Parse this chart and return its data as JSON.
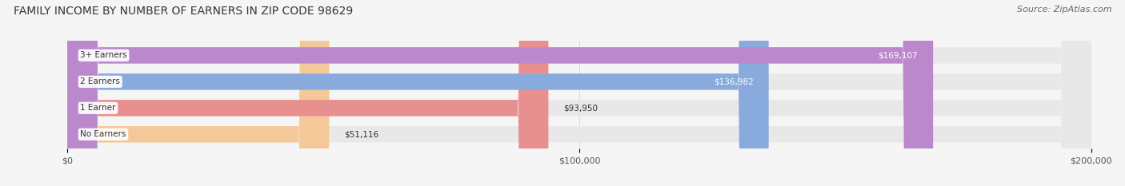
{
  "title": "FAMILY INCOME BY NUMBER OF EARNERS IN ZIP CODE 98629",
  "source": "Source: ZipAtlas.com",
  "categories": [
    "No Earners",
    "1 Earner",
    "2 Earners",
    "3+ Earners"
  ],
  "values": [
    51116,
    93950,
    136982,
    169107
  ],
  "bar_colors": [
    "#f5c899",
    "#e89090",
    "#88aadd",
    "#bb88cc"
  ],
  "bar_bg_color": "#e8e8e8",
  "xlim": [
    0,
    200000
  ],
  "xtick_values": [
    0,
    100000,
    200000
  ],
  "xtick_labels": [
    "$0",
    "$100,000",
    "$200,000"
  ],
  "value_labels": [
    "$51,116",
    "$93,950",
    "$136,982",
    "$169,107"
  ],
  "value_label_colors": [
    "#333333",
    "#333333",
    "#ffffff",
    "#ffffff"
  ],
  "title_fontsize": 10,
  "source_fontsize": 8,
  "bar_label_fontsize": 7.5,
  "value_fontsize": 7.5,
  "background_color": "#f5f5f5"
}
